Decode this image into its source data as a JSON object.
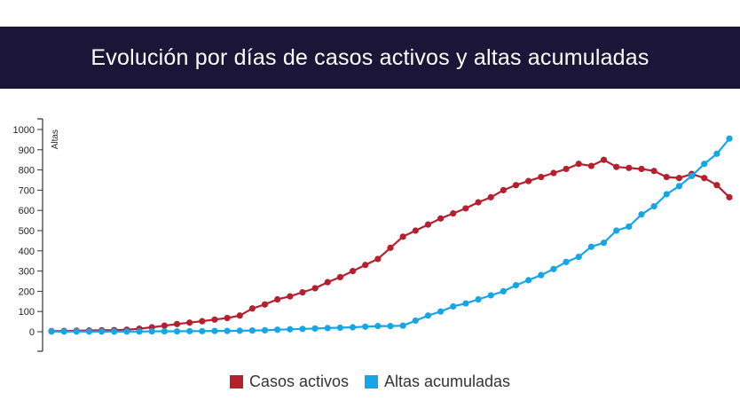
{
  "header": {
    "title": "Evolución por días de casos activos y altas acumuladas",
    "background": "#1b1638",
    "text_color": "#ffffff"
  },
  "chart_data": {
    "type": "line",
    "title": "Evolución por días de casos activos y altas acumuladas",
    "xlabel": "",
    "ylabel": "Altas",
    "ylim": [
      0,
      1000
    ],
    "yticks": [
      0,
      100,
      200,
      300,
      400,
      500,
      600,
      700,
      800,
      900,
      1000
    ],
    "grid": false,
    "legend_position": "bottom-center",
    "series": [
      {
        "name": "Casos activos",
        "color": "#b5202e",
        "values": [
          3,
          4,
          5,
          6,
          7,
          8,
          10,
          15,
          22,
          30,
          38,
          45,
          52,
          60,
          68,
          80,
          115,
          135,
          160,
          175,
          195,
          215,
          245,
          270,
          300,
          330,
          360,
          415,
          470,
          500,
          530,
          560,
          585,
          610,
          640,
          665,
          700,
          725,
          745,
          765,
          785,
          805,
          830,
          820,
          850,
          815,
          810,
          805,
          795,
          765,
          760,
          780,
          760,
          725,
          665
        ]
      },
      {
        "name": "Altas acumuladas",
        "color": "#16a6e6",
        "values": [
          1,
          1,
          1,
          1,
          1,
          1,
          1,
          1,
          2,
          2,
          2,
          3,
          3,
          4,
          4,
          5,
          6,
          7,
          10,
          12,
          14,
          16,
          18,
          20,
          22,
          25,
          28,
          28,
          30,
          55,
          80,
          100,
          125,
          140,
          160,
          180,
          200,
          230,
          255,
          280,
          310,
          345,
          370,
          420,
          440,
          500,
          520,
          580,
          620,
          680,
          720,
          770,
          830,
          880,
          955
        ]
      }
    ]
  }
}
